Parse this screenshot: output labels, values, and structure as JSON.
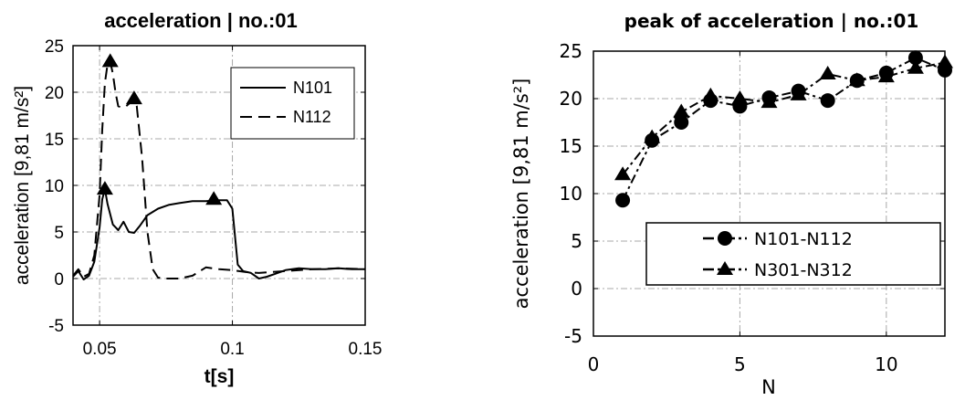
{
  "chart_data": [
    {
      "type": "line",
      "title": "acceleration | no.:01",
      "xlabel": "t[s]",
      "ylabel": "acceleration [9,81 m/s²]",
      "xlim": [
        0.04,
        0.15
      ],
      "ylim": [
        -5,
        25
      ],
      "xticks": [
        0.05,
        0.1,
        0.15
      ],
      "xtick_labels": [
        "0.05",
        "0.1",
        "0.15"
      ],
      "yticks": [
        -5,
        0,
        5,
        10,
        15,
        20,
        25
      ],
      "ytick_labels": [
        "-5",
        "0",
        "5",
        "10",
        "15",
        "20",
        "25"
      ],
      "grid": true,
      "legend_position": "top-right",
      "series": [
        {
          "name": "N101",
          "style": "solid",
          "x": [
            0.04,
            0.042,
            0.044,
            0.046,
            0.048,
            0.05,
            0.051,
            0.052,
            0.053,
            0.055,
            0.057,
            0.059,
            0.061,
            0.063,
            0.065,
            0.068,
            0.072,
            0.076,
            0.08,
            0.085,
            0.09,
            0.095,
            0.098,
            0.1,
            0.102,
            0.104,
            0.107,
            0.11,
            0.113,
            0.117,
            0.12,
            0.125,
            0.13,
            0.135,
            0.14,
            0.145,
            0.15
          ],
          "y": [
            0.2,
            0.8,
            -0.1,
            0.3,
            1.8,
            5.5,
            8.5,
            9.6,
            8.0,
            5.8,
            5.2,
            6.1,
            5.0,
            4.9,
            5.6,
            6.8,
            7.5,
            7.9,
            8.1,
            8.3,
            8.3,
            8.4,
            8.4,
            7.5,
            1.5,
            0.8,
            0.6,
            0.0,
            0.2,
            0.6,
            0.9,
            1.1,
            1.0,
            1.0,
            1.1,
            1.0,
            1.0
          ],
          "markers": [
            {
              "x": 0.052,
              "y": 9.6
            },
            {
              "x": 0.093,
              "y": 8.5
            }
          ]
        },
        {
          "name": "N112",
          "style": "dashed",
          "x": [
            0.04,
            0.042,
            0.044,
            0.046,
            0.048,
            0.05,
            0.051,
            0.052,
            0.053,
            0.054,
            0.055,
            0.056,
            0.057,
            0.058,
            0.06,
            0.062,
            0.063,
            0.064,
            0.066,
            0.068,
            0.07,
            0.072,
            0.075,
            0.08,
            0.085,
            0.09,
            0.095,
            0.1,
            0.105,
            0.11,
            0.12,
            0.13,
            0.14,
            0.15
          ],
          "y": [
            0.3,
            1.0,
            0.2,
            0.5,
            2.5,
            9.0,
            16.0,
            21.0,
            23.0,
            23.3,
            22.0,
            20.0,
            18.5,
            18.4,
            18.5,
            19.0,
            19.3,
            18.5,
            13.0,
            5.0,
            1.0,
            0.1,
            0.0,
            0.0,
            0.3,
            1.2,
            1.0,
            0.9,
            0.7,
            0.6,
            0.8,
            1.0,
            1.1,
            1.0
          ],
          "markers": [
            {
              "x": 0.054,
              "y": 23.3
            },
            {
              "x": 0.063,
              "y": 19.3
            }
          ]
        }
      ]
    },
    {
      "type": "line",
      "title": "peak of acceleration | no.:01",
      "xlabel": "N",
      "ylabel": "acceleration [9,81 m/s²]",
      "xlim": [
        0,
        12
      ],
      "ylim": [
        -5,
        25
      ],
      "xticks": [
        0,
        5,
        10
      ],
      "xtick_labels": [
        "0",
        "5",
        "10"
      ],
      "yticks": [
        -5,
        0,
        5,
        10,
        15,
        20,
        25
      ],
      "ytick_labels": [
        "-5",
        "0",
        "5",
        "10",
        "15",
        "20",
        "25"
      ],
      "grid": true,
      "legend_position": "bottom-right",
      "series": [
        {
          "name": "N101-N112",
          "marker": "circle",
          "style": "dash-dot",
          "x": [
            1,
            2,
            3,
            4,
            5,
            6,
            7,
            8,
            9,
            10,
            11,
            12
          ],
          "y": [
            9.3,
            15.6,
            17.5,
            19.8,
            19.2,
            20.1,
            20.8,
            19.8,
            21.9,
            22.7,
            24.3,
            23.0
          ]
        },
        {
          "name": "N301-N312",
          "marker": "triangle",
          "style": "dash-dot",
          "x": [
            1,
            2,
            3,
            4,
            5,
            6,
            7,
            8,
            9,
            10,
            11,
            12
          ],
          "y": [
            12.0,
            15.9,
            18.6,
            20.3,
            20.0,
            19.6,
            20.4,
            22.6,
            21.9,
            22.3,
            23.2,
            23.8
          ]
        }
      ]
    }
  ]
}
